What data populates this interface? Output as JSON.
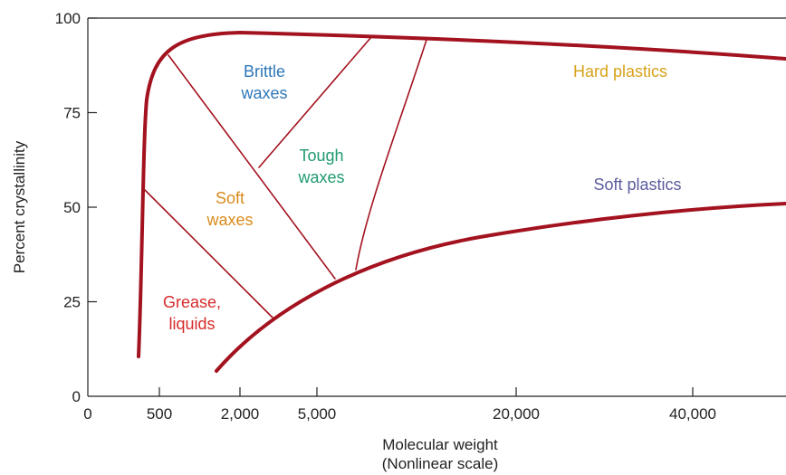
{
  "chart_data": {
    "type": "line",
    "title": "",
    "xlabel": "Molecular weight",
    "xlabel_note": "(Nonlinear scale)",
    "ylabel": "Percent crystallinity",
    "x_scale": "nonlinear",
    "x_ticks": [
      "0",
      "500",
      "2,000",
      "5,000",
      "20,000",
      "40,000"
    ],
    "y_ticks": [
      "0",
      "25",
      "50",
      "75",
      "100"
    ],
    "ylim": [
      0,
      100
    ],
    "grid": false,
    "colors": {
      "boundary": "#a3121f",
      "brittle_waxes": "#2e77b8",
      "hard_plastics": "#d7a21a",
      "tough_waxes": "#1f9b6e",
      "soft_plastics": "#5b5b9e",
      "soft_waxes": "#d98b1c",
      "grease_liquids": "#d62b2b"
    },
    "regions": [
      {
        "key": "brittle_waxes",
        "lines": [
          "Brittle",
          "waxes"
        ]
      },
      {
        "key": "hard_plastics",
        "lines": [
          "Hard plastics"
        ]
      },
      {
        "key": "tough_waxes",
        "lines": [
          "Tough",
          "waxes"
        ]
      },
      {
        "key": "soft_plastics",
        "lines": [
          "Soft plastics"
        ]
      },
      {
        "key": "soft_waxes",
        "lines": [
          "Soft",
          "waxes"
        ]
      },
      {
        "key": "grease_liquids",
        "lines": [
          "Grease,",
          "liquids"
        ]
      }
    ]
  }
}
